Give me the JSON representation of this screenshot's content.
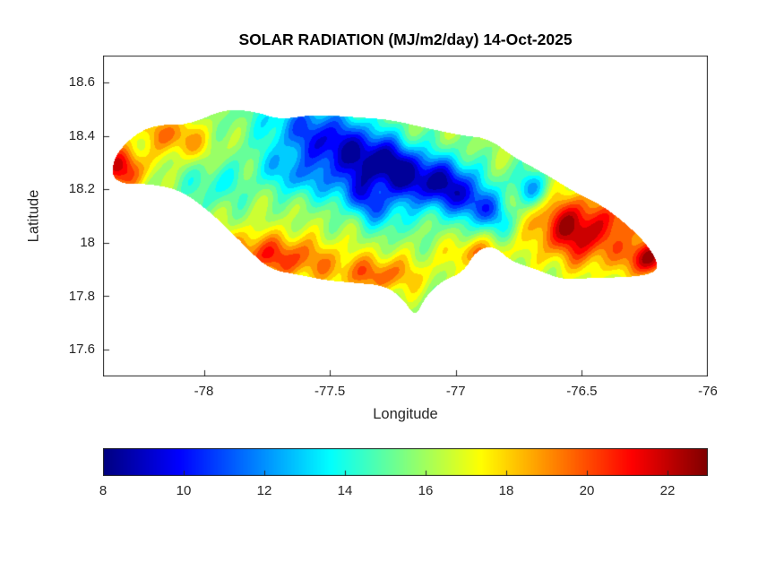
{
  "styles": {
    "background": "#ffffff",
    "axis_color": "#262626",
    "title_color": "#000000"
  },
  "chart_data": {
    "type": "heatmap",
    "title": "SOLAR RADIATION (MJ/m2/day) 14-Oct-2025",
    "xlabel": "Longitude",
    "ylabel": "Latitude",
    "region": "Jamaica",
    "units": "MJ/m2/day",
    "date": "14-Oct-2025",
    "grid": false,
    "legend": "horizontal colorbar below plot",
    "xlim": [
      -78.4,
      -76.0
    ],
    "ylim": [
      17.5,
      18.7
    ],
    "xticks": {
      "values": [
        -78,
        -77.5,
        -77,
        -76.5,
        -76
      ],
      "labels": [
        "-78",
        "-77.5",
        "-77",
        "-76.5",
        "-76"
      ]
    },
    "yticks": {
      "values": [
        17.6,
        17.8,
        18,
        18.2,
        18.4,
        18.6
      ],
      "labels": [
        "17.6",
        "17.8",
        "18",
        "18.2",
        "18.4",
        "18.6"
      ]
    },
    "colorbar": {
      "min": 8,
      "max": 23,
      "orientation": "horizontal",
      "colormap": "jet",
      "tick_values": [
        8,
        10,
        12,
        14,
        16,
        18,
        20,
        22
      ],
      "tick_labels": [
        "8",
        "10",
        "12",
        "14",
        "16",
        "18",
        "20",
        "22"
      ]
    },
    "outline": [
      [
        -78.37,
        18.26
      ],
      [
        -78.34,
        18.35
      ],
      [
        -78.22,
        18.44
      ],
      [
        -78.06,
        18.44
      ],
      [
        -77.92,
        18.5
      ],
      [
        -77.79,
        18.49
      ],
      [
        -77.7,
        18.46
      ],
      [
        -77.56,
        18.48
      ],
      [
        -77.4,
        18.47
      ],
      [
        -77.26,
        18.46
      ],
      [
        -77.12,
        18.43
      ],
      [
        -76.97,
        18.4
      ],
      [
        -76.87,
        18.39
      ],
      [
        -76.77,
        18.32
      ],
      [
        -76.65,
        18.26
      ],
      [
        -76.53,
        18.19
      ],
      [
        -76.42,
        18.14
      ],
      [
        -76.31,
        18.06
      ],
      [
        -76.22,
        17.97
      ],
      [
        -76.19,
        17.89
      ],
      [
        -76.32,
        17.87
      ],
      [
        -76.45,
        17.87
      ],
      [
        -76.57,
        17.86
      ],
      [
        -76.68,
        17.9
      ],
      [
        -76.78,
        17.93
      ],
      [
        -76.85,
        17.99
      ],
      [
        -76.92,
        17.97
      ],
      [
        -76.97,
        17.89
      ],
      [
        -77.05,
        17.86
      ],
      [
        -77.12,
        17.8
      ],
      [
        -77.16,
        17.72
      ],
      [
        -77.21,
        17.79
      ],
      [
        -77.28,
        17.84
      ],
      [
        -77.4,
        17.85
      ],
      [
        -77.52,
        17.86
      ],
      [
        -77.62,
        17.88
      ],
      [
        -77.74,
        17.9
      ],
      [
        -77.83,
        17.98
      ],
      [
        -77.87,
        18.02
      ],
      [
        -77.98,
        18.12
      ],
      [
        -78.1,
        18.2
      ],
      [
        -78.22,
        18.22
      ],
      [
        -78.33,
        18.22
      ]
    ],
    "field": {
      "base": 16.0,
      "contour_step": 0.75,
      "noise": {
        "amp": 1.0,
        "fx": 55,
        "fy": 31,
        "rot": -35
      },
      "features": [
        {
          "lon": -78.33,
          "lat": 18.28,
          "amp": 5.5,
          "sx": 0.07,
          "sy": 0.06,
          "rot": 0
        },
        {
          "lon": -78.12,
          "lat": 18.4,
          "amp": 3.5,
          "sx": 0.1,
          "sy": 0.05,
          "rot": -20
        },
        {
          "lon": -77.72,
          "lat": 17.95,
          "amp": 4.5,
          "sx": 0.18,
          "sy": 0.06,
          "rot": -5
        },
        {
          "lon": -77.3,
          "lat": 17.88,
          "amp": 3.5,
          "sx": 0.12,
          "sy": 0.05,
          "rot": 0
        },
        {
          "lon": -76.92,
          "lat": 17.96,
          "amp": 3.0,
          "sx": 0.08,
          "sy": 0.04,
          "rot": 0
        },
        {
          "lon": -76.52,
          "lat": 18.05,
          "amp": 6.5,
          "sx": 0.13,
          "sy": 0.09,
          "rot": -15
        },
        {
          "lon": -76.27,
          "lat": 18.13,
          "amp": 5.0,
          "sx": 0.07,
          "sy": 0.06,
          "rot": 0
        },
        {
          "lon": -76.24,
          "lat": 17.94,
          "amp": 6.0,
          "sx": 0.06,
          "sy": 0.05,
          "rot": 0
        },
        {
          "lon": -77.48,
          "lat": 18.36,
          "amp": -6.5,
          "sx": 0.2,
          "sy": 0.09,
          "rot": -25
        },
        {
          "lon": -77.22,
          "lat": 18.27,
          "amp": -5.5,
          "sx": 0.12,
          "sy": 0.07,
          "rot": -30
        },
        {
          "lon": -77.35,
          "lat": 18.15,
          "amp": -4.0,
          "sx": 0.1,
          "sy": 0.05,
          "rot": -35
        },
        {
          "lon": -77.02,
          "lat": 18.22,
          "amp": -5.5,
          "sx": 0.09,
          "sy": 0.07,
          "rot": -20
        },
        {
          "lon": -76.88,
          "lat": 18.12,
          "amp": -4.5,
          "sx": 0.08,
          "sy": 0.05,
          "rot": -30
        },
        {
          "lon": -76.7,
          "lat": 18.2,
          "amp": -4.0,
          "sx": 0.06,
          "sy": 0.05,
          "rot": -20
        },
        {
          "lon": -77.65,
          "lat": 18.25,
          "amp": -3.0,
          "sx": 0.1,
          "sy": 0.05,
          "rot": -25
        },
        {
          "lon": -77.95,
          "lat": 18.22,
          "amp": -2.0,
          "sx": 0.1,
          "sy": 0.06,
          "rot": 0
        }
      ]
    }
  }
}
